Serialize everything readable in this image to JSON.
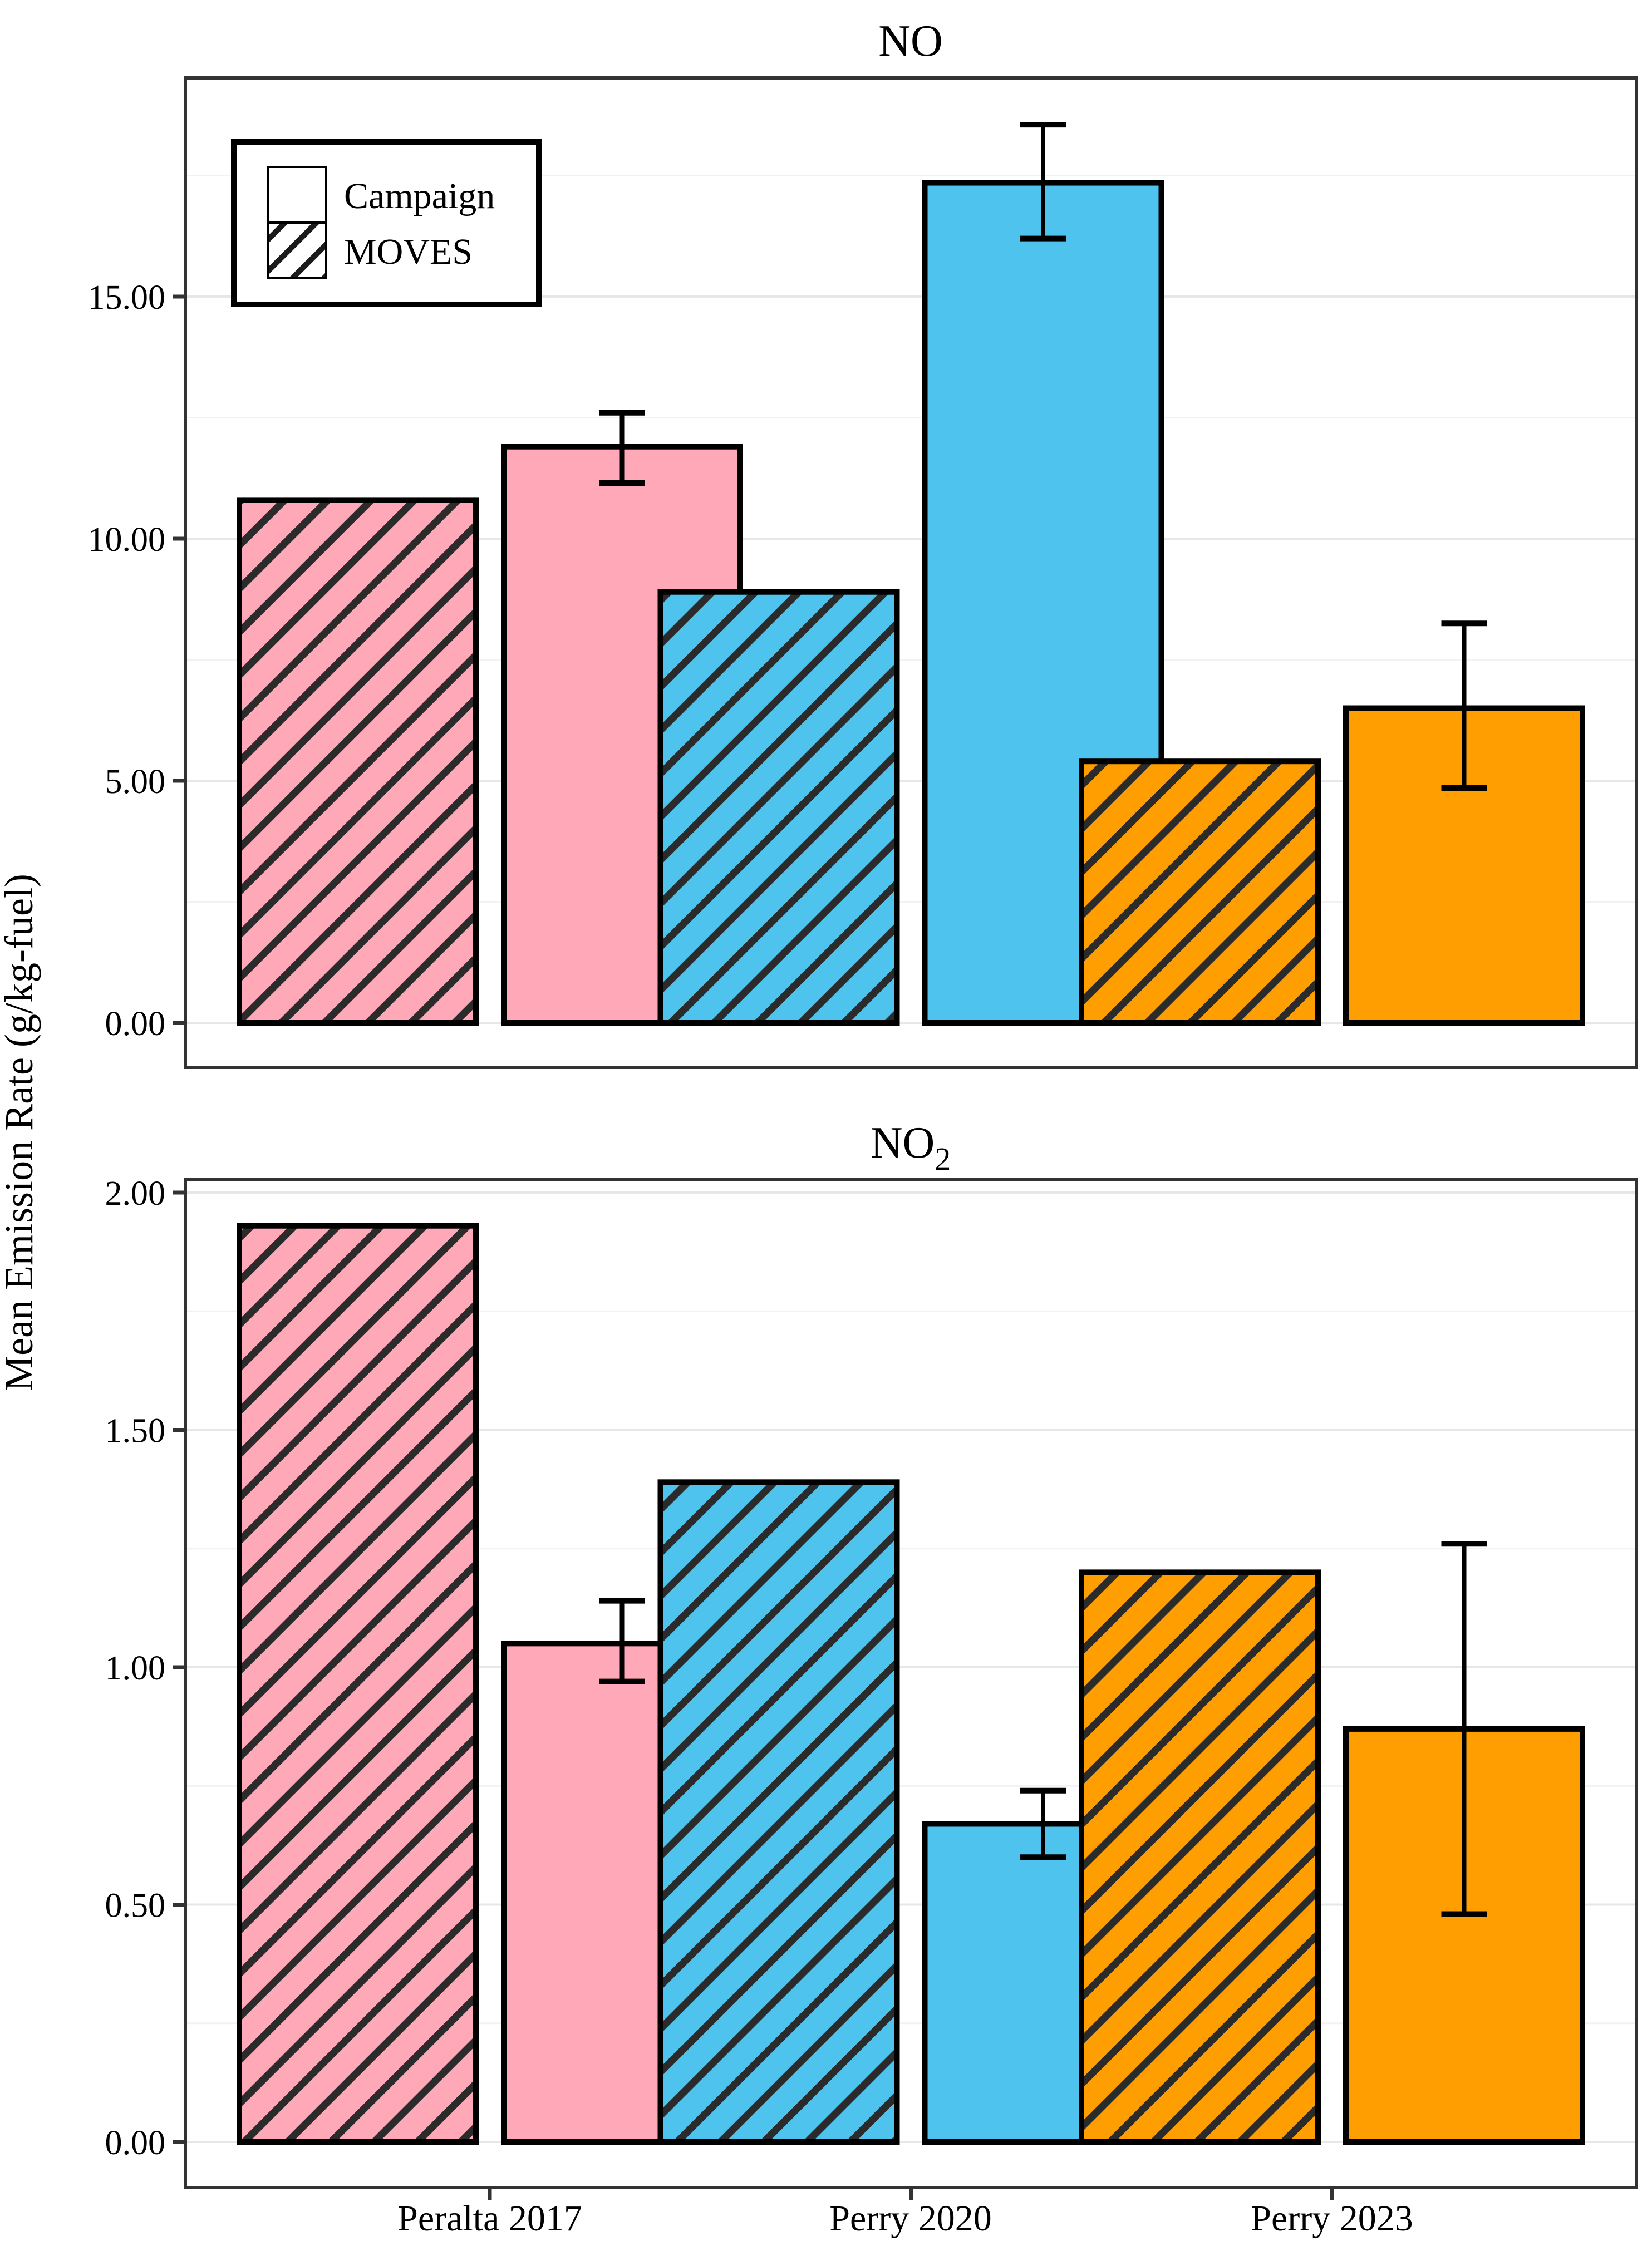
{
  "page": {
    "background": "#FFFFFF"
  },
  "axis": {
    "y_label": "Mean Emission Rate (g/kg-fuel)"
  },
  "x_axis": {
    "categories": [
      "Peralta 2017",
      "Perry 2020",
      "Perry 2023"
    ]
  },
  "legend": {
    "entries": [
      {
        "label": "Campaign",
        "style": "solid"
      },
      {
        "label": "MOVES",
        "style": "hatched"
      }
    ]
  },
  "colors": {
    "category_colors": [
      "#FFA8B8",
      "#4DC3EE",
      "#FF9E00"
    ],
    "hatch_line": "#2B2B2B",
    "bar_outline": "#000000",
    "panel_border": "#333333",
    "grid_major": "#E7E7E7",
    "grid_minor": "#F2F2F2",
    "error_bar": "#000000",
    "text": "#000000"
  },
  "chart_data": [
    {
      "type": "bar",
      "title": "NO",
      "title_subscript": "",
      "categories": [
        "Peralta 2017",
        "Perry 2020",
        "Perry 2023"
      ],
      "category_colors": [
        "#FFA8B8",
        "#4DC3EE",
        "#FF9E00"
      ],
      "series": [
        {
          "name": "MOVES",
          "pattern": "hatched",
          "values": [
            10.8,
            8.9,
            5.4
          ]
        },
        {
          "name": "Campaign",
          "pattern": "solid",
          "values": [
            11.9,
            17.35,
            6.5
          ],
          "error_low": [
            11.15,
            16.2,
            4.85
          ],
          "error_high": [
            12.6,
            18.55,
            8.25
          ]
        }
      ],
      "ylabel": "Mean Emission Rate (g/kg-fuel)",
      "ylim": [
        0,
        19.5
      ],
      "yticks": [
        {
          "value": 0,
          "label": "0.00"
        },
        {
          "value": 5,
          "label": "5.00"
        },
        {
          "value": 10,
          "label": "10.00"
        },
        {
          "value": 15,
          "label": "15.00"
        }
      ],
      "minor_ticks": [
        2.5,
        7.5,
        12.5,
        17.5
      ],
      "grid": true,
      "legend_position": "top-left-inside"
    },
    {
      "type": "bar",
      "title": "NO",
      "title_subscript": "2",
      "categories": [
        "Peralta 2017",
        "Perry 2020",
        "Perry 2023"
      ],
      "category_colors": [
        "#FFA8B8",
        "#4DC3EE",
        "#FF9E00"
      ],
      "series": [
        {
          "name": "MOVES",
          "pattern": "hatched",
          "values": [
            1.93,
            1.39,
            1.2
          ]
        },
        {
          "name": "Campaign",
          "pattern": "solid",
          "values": [
            1.05,
            0.67,
            0.87
          ],
          "error_low": [
            0.97,
            0.6,
            0.48
          ],
          "error_high": [
            1.14,
            0.74,
            1.26
          ]
        }
      ],
      "ylabel": "Mean Emission Rate (g/kg-fuel)",
      "ylim": [
        0,
        2.03
      ],
      "yticks": [
        {
          "value": 0,
          "label": "0.00"
        },
        {
          "value": 0.5,
          "label": "0.50"
        },
        {
          "value": 1.0,
          "label": "1.00"
        },
        {
          "value": 1.5,
          "label": "1.50"
        },
        {
          "value": 2.0,
          "label": "2.00"
        }
      ],
      "minor_ticks": [
        0.25,
        0.75,
        1.25,
        1.75
      ],
      "grid": true,
      "legend_position": "none"
    }
  ]
}
